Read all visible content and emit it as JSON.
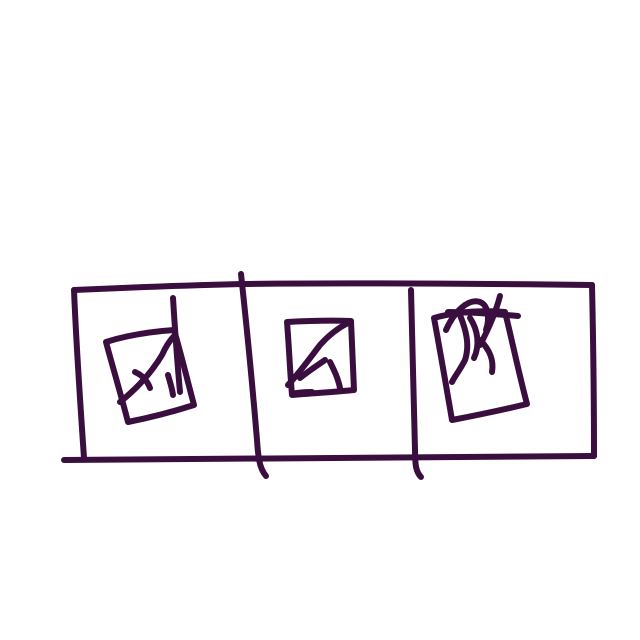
{
  "sketch": {
    "ink_color": "#3a0f3f",
    "background_color": "#ffffff",
    "panel_count": 3,
    "panels": [
      {
        "icon": "image-icon"
      },
      {
        "icon": "image-icon"
      },
      {
        "icon": "image-icon"
      }
    ]
  }
}
